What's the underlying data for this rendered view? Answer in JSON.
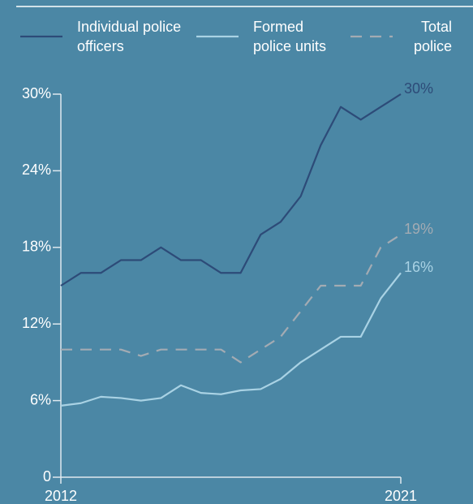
{
  "chart_data": {
    "type": "line",
    "x": [
      2012,
      2012.53,
      2013.06,
      2013.59,
      2014.12,
      2014.65,
      2015.18,
      2015.71,
      2016.24,
      2016.76,
      2017.29,
      2017.82,
      2018.35,
      2018.88,
      2019.41,
      2019.94,
      2020.47,
      2021
    ],
    "series": [
      {
        "name": "Individual police officers",
        "color": "#2d4b78",
        "dashed": false,
        "values": [
          15,
          16,
          16,
          17,
          17,
          18,
          17,
          17,
          16,
          16,
          19,
          20,
          22,
          26,
          29,
          28,
          29,
          30
        ],
        "value_labels": [
          null,
          null,
          null,
          null,
          null,
          null,
          null,
          null,
          null,
          null,
          null,
          null,
          null,
          null,
          null,
          null,
          null,
          "30%"
        ]
      },
      {
        "name": "Formed police units",
        "color": "#a9d2e4",
        "dashed": false,
        "values": [
          5.6,
          5.8,
          6.3,
          6.2,
          6.0,
          6.2,
          7.2,
          6.6,
          6.5,
          6.8,
          6.9,
          7.7,
          9,
          10,
          11,
          11,
          14,
          16
        ],
        "value_labels": [
          null,
          null,
          null,
          null,
          null,
          null,
          null,
          null,
          null,
          null,
          null,
          null,
          null,
          null,
          null,
          null,
          null,
          "16%"
        ]
      },
      {
        "name": "Total police",
        "color": "#a3abb3",
        "dashed": true,
        "values": [
          10,
          10,
          10,
          10,
          9.5,
          10,
          10,
          10,
          10,
          9,
          10,
          11,
          13,
          15,
          15,
          15,
          18,
          19
        ],
        "value_labels": [
          null,
          null,
          null,
          null,
          null,
          null,
          null,
          null,
          null,
          null,
          null,
          null,
          null,
          null,
          null,
          null,
          null,
          "19%"
        ]
      }
    ],
    "xlim": [
      2012,
      2021
    ],
    "xticks": [
      2012,
      2021
    ],
    "ylim": [
      0,
      30
    ],
    "yticks": [
      0,
      {
        "value": 6,
        "label": "6%"
      },
      {
        "value": 12,
        "label": "12%"
      },
      {
        "value": 18,
        "label": "18%"
      },
      {
        "value": 24,
        "label": "24%"
      },
      {
        "value": 30,
        "label": "30%"
      }
    ]
  }
}
